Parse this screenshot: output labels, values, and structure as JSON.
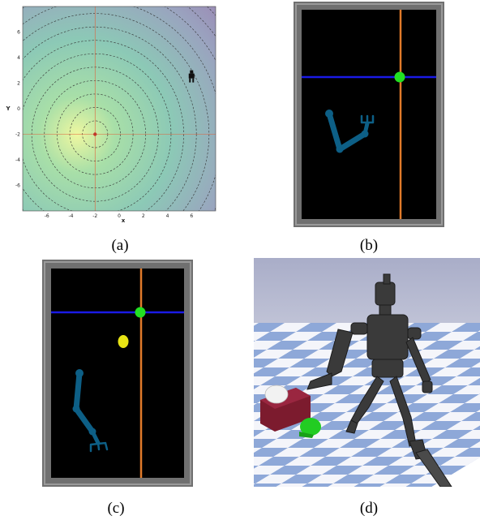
{
  "figure": {
    "captions": [
      "(a)",
      "(b)",
      "(c)",
      "(d)"
    ]
  },
  "chart_data": {
    "type": "contour",
    "xlabel": "x",
    "ylabel": "Y",
    "xlim": [
      -8,
      8
    ],
    "ylim": [
      -8,
      8
    ],
    "x_ticks": [
      "-6",
      "-4",
      "-2",
      "0",
      "2",
      "4",
      "6"
    ],
    "y_ticks": [
      "6",
      "4",
      "2",
      "0",
      "-2",
      "-4",
      "-6"
    ],
    "center": [
      -2,
      -2
    ],
    "robot_marker": [
      6,
      2.5
    ],
    "colors": {
      "center": "#e9f59a",
      "mid": "#8fd3ad",
      "edge": "#9a86b2",
      "crosshair": "#e0613a"
    }
  },
  "panels": {
    "b": {
      "bg": "#000000",
      "frame": "#6f6f6f",
      "h_line": "#1212e0",
      "v_line": "#e07a2a",
      "goal": "#22e022",
      "arm": "#0d5f86"
    },
    "c": {
      "bg": "#000000",
      "frame": "#6f6f6f",
      "h_line": "#1212e0",
      "v_line": "#e07a2a",
      "goal": "#22e022",
      "object": "#e8e414",
      "arm": "#0d5f86"
    },
    "d": {
      "sky": "#b3b7cf",
      "floor_a": "#f5f6fa",
      "floor_b": "#8ea6d6",
      "robot": "#3c3c3c",
      "box": "#7c1b2e",
      "ball": "#22cc22"
    }
  }
}
